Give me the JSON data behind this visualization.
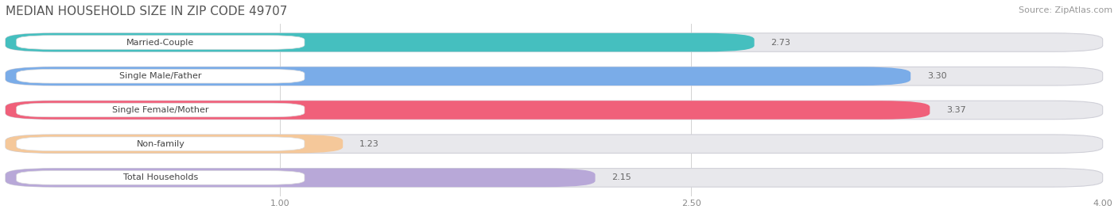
{
  "title": "MEDIAN HOUSEHOLD SIZE IN ZIP CODE 49707",
  "source": "Source: ZipAtlas.com",
  "categories": [
    "Married-Couple",
    "Single Male/Father",
    "Single Female/Mother",
    "Non-family",
    "Total Households"
  ],
  "values": [
    2.73,
    3.3,
    3.37,
    1.23,
    2.15
  ],
  "bar_colors": [
    "#45bfbf",
    "#7aace8",
    "#f0607a",
    "#f5c89a",
    "#b8a8d8"
  ],
  "xlim_data": [
    0.0,
    4.0
  ],
  "xstart": 0.0,
  "xticks": [
    1.0,
    2.5,
    4.0
  ],
  "background_color": "#ffffff",
  "bar_bg_color": "#e8e8ec",
  "label_box_color": "#ffffff",
  "value_color": "#666666",
  "title_color": "#555555",
  "source_color": "#999999",
  "title_fontsize": 11,
  "source_fontsize": 8,
  "label_fontsize": 8,
  "value_fontsize": 8,
  "tick_fontsize": 8,
  "bar_height": 0.55,
  "bar_gap": 0.9
}
